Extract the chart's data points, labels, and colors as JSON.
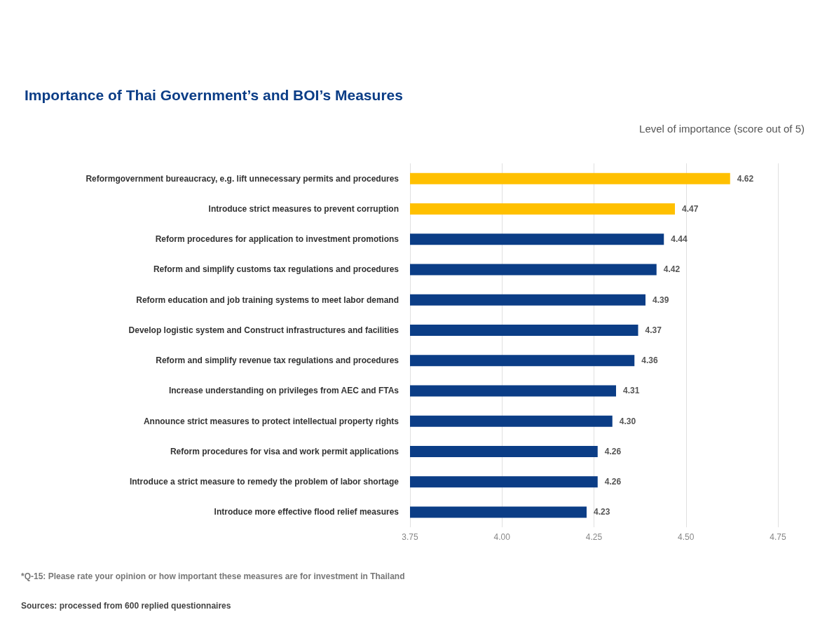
{
  "chart_data": {
    "type": "bar",
    "orientation": "horizontal",
    "title": "Importance of Thai Government’s and BOI’s Measures",
    "xlabel": "Level of importance (score out of 5)",
    "categories": [
      "Reformgovernment bureaucracy, e.g. lift unnecessary permits and procedures",
      "Introduce strict measures to prevent corruption",
      "Reform procedures for application to investment promotions",
      "Reform and simplify customs tax regulations and procedures",
      "Reform education and job training systems to meet labor demand",
      "Develop logistic system and Construct infrastructures and facilities",
      "Reform and simplify revenue tax regulations and procedures",
      "Increase understanding on privileges from AEC and FTAs",
      "Announce strict measures to protect intellectual property rights",
      "Reform procedures for visa and work permit applications",
      "Introduce a strict measure to remedy the problem of labor shortage",
      "Introduce more effective flood relief measures"
    ],
    "values": [
      4.62,
      4.47,
      4.44,
      4.42,
      4.39,
      4.37,
      4.36,
      4.31,
      4.3,
      4.26,
      4.26,
      4.23
    ],
    "value_labels": [
      "4.62",
      "4.47",
      "4.44",
      "4.42",
      "4.39",
      "4.37",
      "4.36",
      "4.31",
      "4.30",
      "4.26",
      "4.26",
      "4.23"
    ],
    "colors": [
      "#ffc000",
      "#ffc000",
      "#0b3d86",
      "#0b3d86",
      "#0b3d86",
      "#0b3d86",
      "#0b3d86",
      "#0b3d86",
      "#0b3d86",
      "#0b3d86",
      "#0b3d86",
      "#0b3d86"
    ],
    "xlim": [
      3.75,
      4.75
    ],
    "xticks": [
      {
        "value": 3.75,
        "label": "3.75"
      },
      {
        "value": 4.0,
        "label": "4.00"
      },
      {
        "value": 4.25,
        "label": "4.25"
      },
      {
        "value": 4.5,
        "label": "4.50"
      },
      {
        "value": 4.75,
        "label": "4.75"
      }
    ],
    "grid": "x",
    "annotations": [
      "*Q-15: Please rate your opinion or how important these measures are for investment in Thailand",
      "Sources: processed from 600 replied questionnaires"
    ]
  }
}
